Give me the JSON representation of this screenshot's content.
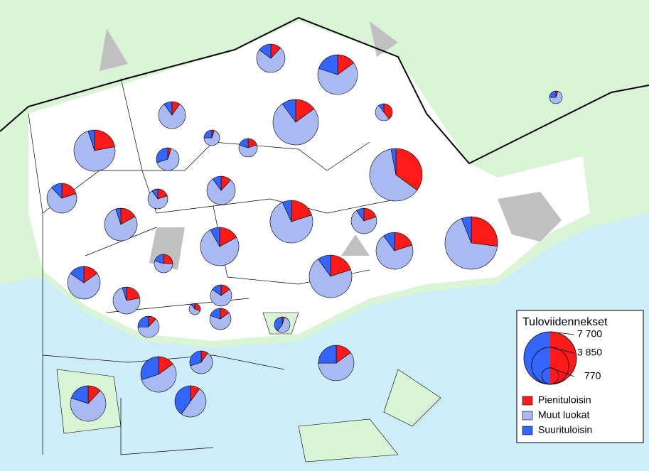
{
  "legend": {
    "title": "Tuloviidennekset",
    "sizes": [
      {
        "value": 7700,
        "label": "7 700"
      },
      {
        "value": 3850,
        "label": "3 850"
      },
      {
        "value": 770,
        "label": "770"
      }
    ],
    "classes": [
      {
        "name": "Pienituloisin",
        "color": "#ff1a1a"
      },
      {
        "name": "Muut luokat",
        "color": "#a9b9f2"
      },
      {
        "name": "Suurituloisin",
        "color": "#3366ff"
      }
    ]
  },
  "pies": [
    {
      "values": [
        270,
        1640,
        340
      ]
    },
    {
      "values": [
        660,
        2860,
        880
      ]
    },
    {
      "values": [
        860,
        4315,
        575
      ]
    },
    {
      "values": [
        320,
        410,
        80
      ]
    },
    {
      "values": [
        200,
        1630,
        200
      ]
    },
    {
      "values": [
        1040,
        3450,
        240
      ]
    },
    {
      "values": [
        35,
        475,
        170
      ]
    },
    {
      "values": [
        190,
        570,
        190
      ]
    },
    {
      "values": [
        70,
        940,
        430
      ]
    },
    {
      "values": [
        2700,
        4770,
        230
      ]
    },
    {
      "values": [
        500,
        1680,
        300
      ]
    },
    {
      "values": [
        220,
        770,
        110
      ]
    },
    {
      "values": [
        270,
        1755,
        225
      ]
    },
    {
      "values": [
        1010,
        3700,
        350
      ]
    },
    {
      "values": [
        360,
        1280,
        180
      ]
    },
    {
      "values": [
        500,
        2320,
        150
      ]
    },
    {
      "values": [
        2080,
        5160,
        460
      ]
    },
    {
      "values": [
        760,
        2660,
        380
      ]
    },
    {
      "values": [
        700,
        3070,
        330
      ]
    },
    {
      "values": [
        240,
        520,
        190
      ]
    },
    {
      "values": [
        1010,
        3550,
        500
      ]
    },
    {
      "values": [
        450,
        2070,
        450
      ]
    },
    {
      "values": [
        450,
        1480,
        100
      ]
    },
    {
      "values": [
        190,
        880,
        190
      ]
    },
    {
      "values": [
        110,
        214,
        36
      ]
    },
    {
      "values": [
        190,
        820,
        250
      ]
    },
    {
      "values": [
        150,
        790,
        320
      ]
    },
    {
      "values": [
        35,
        375,
        270
      ]
    },
    {
      "values": [
        530,
        2100,
        880
      ]
    },
    {
      "values": [
        140,
        870,
        430
      ]
    },
    {
      "values": [
        530,
        1930,
        1050
      ]
    },
    {
      "values": [
        270,
        1360,
        1090
      ]
    },
    {
      "values": [
        420,
        2390,
        700
      ]
    },
    {
      "values": [
        23,
        318,
        114
      ]
    }
  ]
}
